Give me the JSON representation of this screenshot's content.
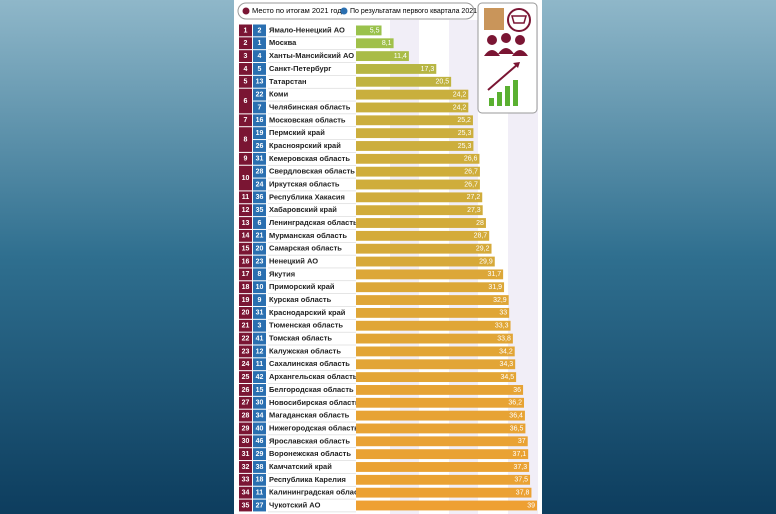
{
  "chart_data": {
    "type": "bar",
    "legend": [
      "Место по итогам 2021 года",
      "По результатам первого квартала 2021 года"
    ],
    "legend_colors": [
      "#7a1533",
      "#2a6fb0"
    ],
    "categories": [
      "Ямало-Ненецкий АО",
      "Москва",
      "Ханты-Мансийский АО",
      "Санкт-Петербург",
      "Татарстан",
      "Коми",
      "Челябинская область",
      "Московская область",
      "Пермский край",
      "Красноярский край",
      "Кемеровская область",
      "Свердловская область",
      "Иркутская область",
      "Республика Хакасия",
      "Хабаровский край",
      "Ленинградская область",
      "Мурманская область",
      "Самарская область",
      "Ненецкий АО",
      "Якутия",
      "Приморский край",
      "Курская область",
      "Краснодарский край",
      "Тюменская область",
      "Томская область",
      "Калужская область",
      "Сахалинская область",
      "Архангельская область",
      "Белгородская область",
      "Новосибирская область",
      "Магаданская область",
      "Нижегородская область",
      "Ярославская область",
      "Воронежская область",
      "Камчатский край",
      "Республика Карелия",
      "Калининградская область",
      "Чукотский АО"
    ],
    "rank_2021": [
      1,
      2,
      3,
      4,
      5,
      6,
      6,
      7,
      8,
      8,
      9,
      10,
      10,
      11,
      12,
      13,
      14,
      15,
      16,
      17,
      18,
      19,
      20,
      21,
      22,
      23,
      24,
      25,
      26,
      27,
      28,
      29,
      30,
      31,
      32,
      33,
      34,
      35
    ],
    "rank_q1": [
      2,
      1,
      4,
      5,
      13,
      22,
      7,
      16,
      19,
      26,
      31,
      28,
      24,
      36,
      35,
      6,
      21,
      20,
      23,
      8,
      10,
      9,
      31,
      3,
      41,
      12,
      11,
      42,
      15,
      30,
      34,
      40,
      46,
      29,
      38,
      18,
      11,
      27
    ],
    "values": [
      5.5,
      8.1,
      11.4,
      17.3,
      20.5,
      24.2,
      24.2,
      25.2,
      25.3,
      25.3,
      26.6,
      26.7,
      26.7,
      27.2,
      27.3,
      28,
      28.7,
      29.2,
      29.9,
      31.7,
      31.9,
      32.9,
      33,
      33.3,
      33.8,
      34.2,
      34.3,
      34.5,
      36,
      36.2,
      36.4,
      36.5,
      37,
      37.1,
      37.3,
      37.5,
      37.8,
      39
    ],
    "value_labels": [
      "5,5",
      "8,1",
      "11,4",
      "17,3",
      "20,5",
      "24,2",
      "24,2",
      "25,2",
      "25,3",
      "25,3",
      "26,6",
      "26,7",
      "26,7",
      "27,2",
      "27,3",
      "28",
      "28,7",
      "29,2",
      "29,9",
      "31,7",
      "31,9",
      "32,9",
      "33",
      "33,3",
      "33,8",
      "34,2",
      "34,3",
      "34,5",
      "36",
      "36,2",
      "36,4",
      "36,5",
      "37",
      "37,1",
      "37,3",
      "37,5",
      "37,8",
      "39"
    ],
    "xlim": [
      0,
      39
    ]
  }
}
